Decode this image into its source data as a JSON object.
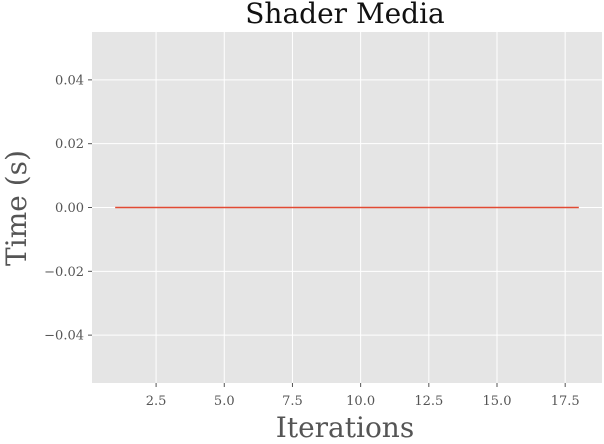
{
  "chart_data": {
    "type": "line",
    "title": "Shader Media",
    "xlabel": "Iterations",
    "ylabel": "Time (s)",
    "xlim": [
      0.15,
      18.85
    ],
    "ylim": [
      -0.055,
      0.055
    ],
    "xticks": [
      2.5,
      5.0,
      7.5,
      10.0,
      12.5,
      15.0,
      17.5
    ],
    "xtick_labels": [
      "2.5",
      "5.0",
      "7.5",
      "10.0",
      "12.5",
      "15.0",
      "17.5"
    ],
    "yticks": [
      -0.04,
      -0.02,
      0.0,
      0.02,
      0.04
    ],
    "ytick_labels": [
      "−0.04",
      "−0.02",
      "0.00",
      "0.02",
      "0.04"
    ],
    "grid": true,
    "series": [
      {
        "color": "#e24a33",
        "x": [
          1,
          2,
          3,
          4,
          5,
          6,
          7,
          8,
          9,
          10,
          11,
          12,
          13,
          14,
          15,
          16,
          17,
          18
        ],
        "y": [
          0,
          0,
          0,
          0,
          0,
          0,
          0,
          0,
          0,
          0,
          0,
          0,
          0,
          0,
          0,
          0,
          0,
          0
        ]
      }
    ]
  }
}
